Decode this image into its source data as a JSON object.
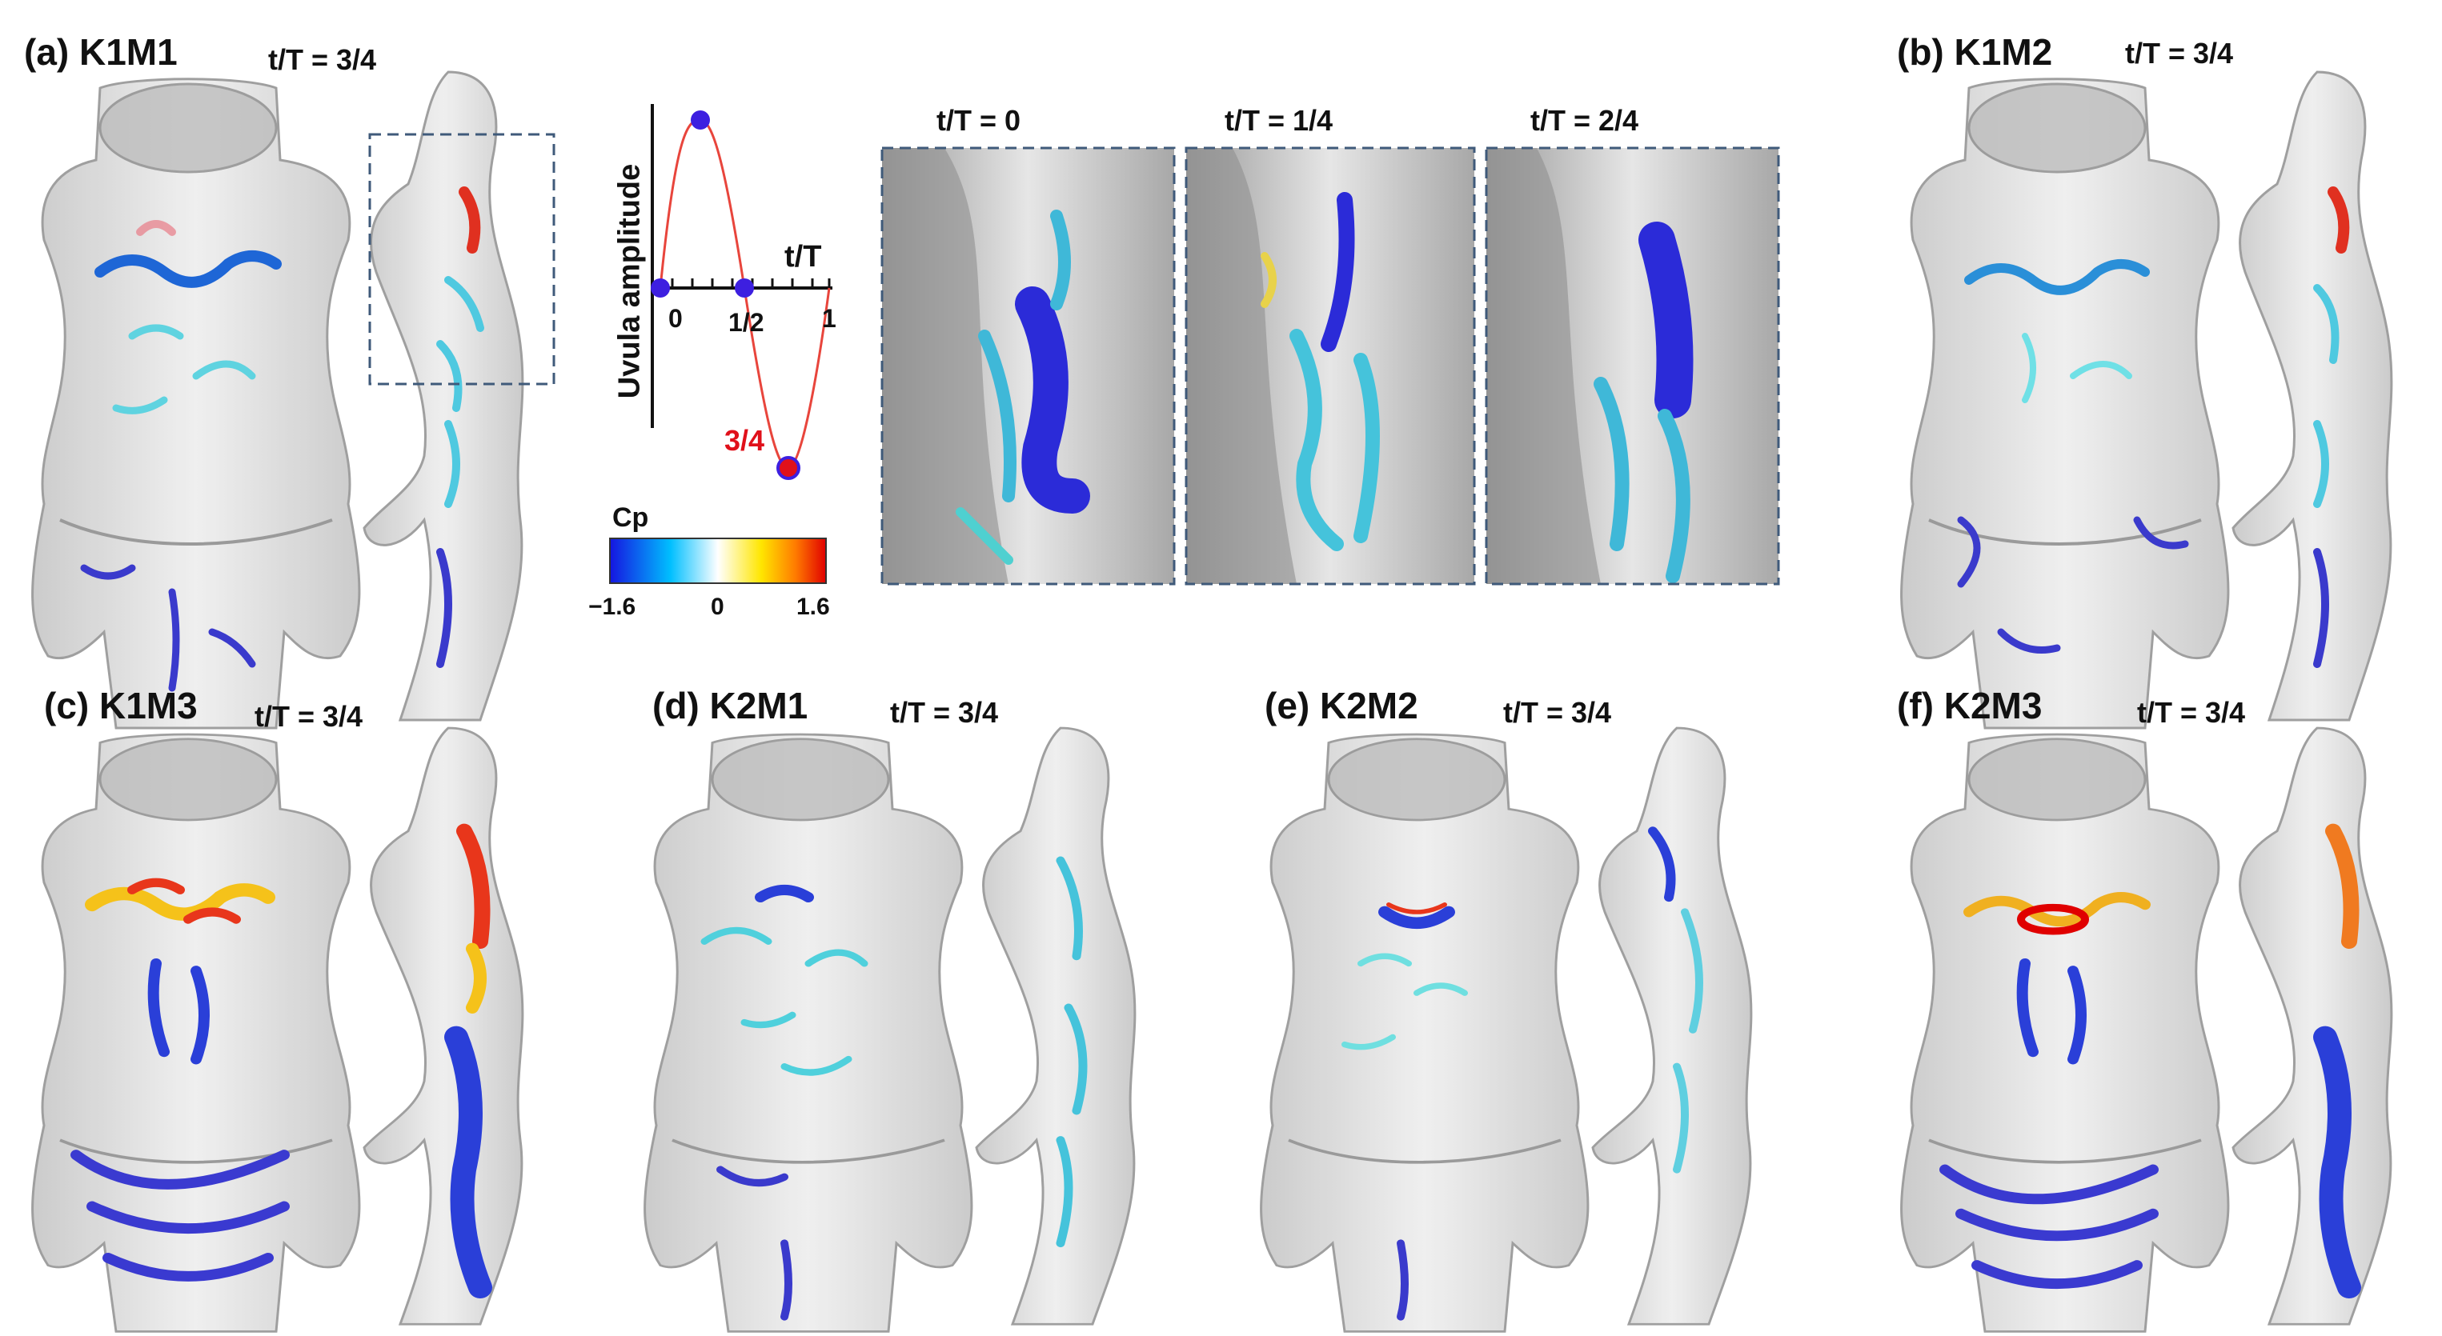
{
  "panels": [
    {
      "title": "(a) K1M1",
      "time": "t/T = 3/4"
    },
    {
      "title": "(b) K1M2",
      "time": "t/T = 3/4"
    },
    {
      "title": "(c) K1M3",
      "time": "t/T = 3/4"
    },
    {
      "title": "(d) K2M1",
      "time": "t/T = 3/4"
    },
    {
      "title": "(e) K2M2",
      "time": "t/T = 3/4"
    },
    {
      "title": "(f) K2M3",
      "time": "t/T = 3/4"
    }
  ],
  "zoom_views": [
    {
      "time": "t/T = 0"
    },
    {
      "time": "t/T = 1/4"
    },
    {
      "time": "t/T = 2/4"
    }
  ],
  "uvula_plot": {
    "ylabel": "Uvula amplitude",
    "xlabel": "t/T",
    "ticks": [
      "0",
      "1/2",
      "1"
    ],
    "highlight_label": "3/4",
    "highlight_color": "#e0101a",
    "marker_color": "#3d1fe0",
    "curve_color": "#e8453c"
  },
  "colorbar": {
    "label": "Cp",
    "min_label": "−1.6",
    "mid_label": "0",
    "max_label": "1.6",
    "colors": [
      "#1515e0",
      "#00bfff",
      "#ffffff",
      "#ffe600",
      "#ff7a00",
      "#e00000"
    ]
  }
}
